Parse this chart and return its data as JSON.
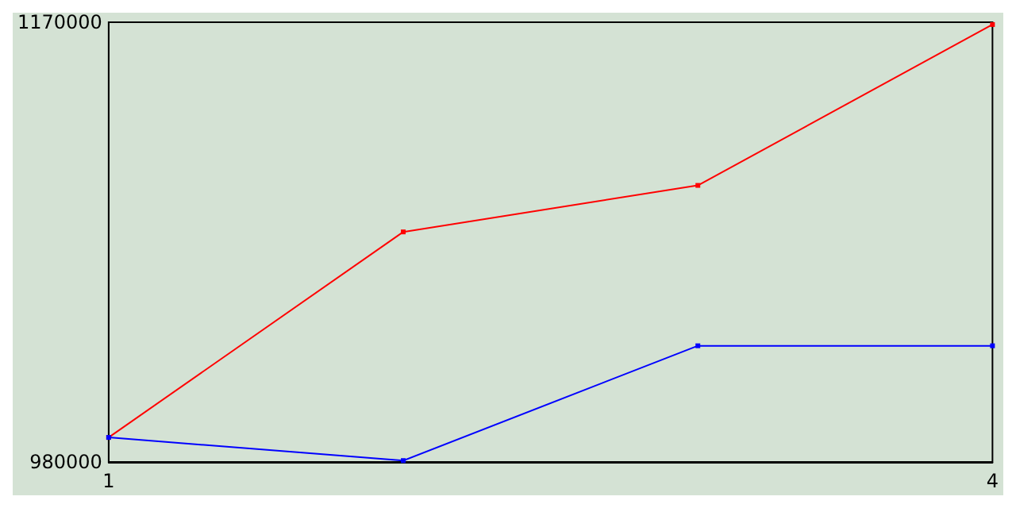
{
  "chart_data": {
    "type": "line",
    "x": [
      1,
      2,
      3,
      4
    ],
    "series": [
      {
        "color": "#ff0000",
        "values": [
          990600,
          1079400,
          1099500,
          1169000
        ]
      },
      {
        "color": "#0000ff",
        "values": [
          990600,
          980600,
          1030200,
          1030200
        ]
      }
    ],
    "xlim": [
      1,
      4
    ],
    "xticks": [
      1,
      4
    ],
    "ylim": [
      980000,
      1170000
    ],
    "yticks": [
      980000,
      1170000
    ],
    "grid": false,
    "marker": "square",
    "line_style": "solid"
  }
}
